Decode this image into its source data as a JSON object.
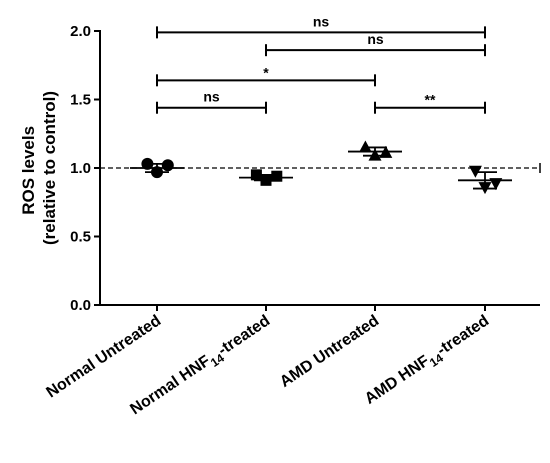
{
  "chart_data": {
    "type": "scatter",
    "ylabel_line1": "ROS levels",
    "ylabel_line2": "(relative to control)",
    "ylim": [
      0.0,
      2.0
    ],
    "yticks": [
      "0.0",
      "0.5",
      "1.0",
      "1.5",
      "2.0"
    ],
    "reference_line": 1.0,
    "categories": [
      {
        "label": "Normal Untreated",
        "sub": "",
        "suffix": ""
      },
      {
        "label": "Normal HNF",
        "sub": "14",
        "suffix": "-treated"
      },
      {
        "label": "AMD Untreated",
        "sub": "",
        "suffix": ""
      },
      {
        "label": "AMD HNF",
        "sub": "14",
        "suffix": "-treated"
      }
    ],
    "groups": [
      {
        "marker": "circle",
        "points": [
          1.03,
          0.97,
          1.02
        ],
        "mean": 1.0,
        "error": 0.03
      },
      {
        "marker": "square",
        "points": [
          0.95,
          0.91,
          0.94
        ],
        "mean": 0.93,
        "error": 0.02
      },
      {
        "marker": "triangle-up",
        "points": [
          1.15,
          1.09,
          1.11
        ],
        "mean": 1.12,
        "error": 0.03
      },
      {
        "marker": "triangle-down",
        "points": [
          0.98,
          0.86,
          0.89
        ],
        "mean": 0.91,
        "error": 0.06
      }
    ],
    "comparisons": [
      {
        "from": 0,
        "to": 3,
        "y": 1.99,
        "label": "ns"
      },
      {
        "from": 1,
        "to": 3,
        "y": 1.86,
        "label": "ns"
      },
      {
        "from": 0,
        "to": 2,
        "y": 1.64,
        "label": "*"
      },
      {
        "from": 0,
        "to": 1,
        "y": 1.44,
        "label": "ns"
      },
      {
        "from": 2,
        "to": 3,
        "y": 1.44,
        "label": "**"
      }
    ]
  }
}
